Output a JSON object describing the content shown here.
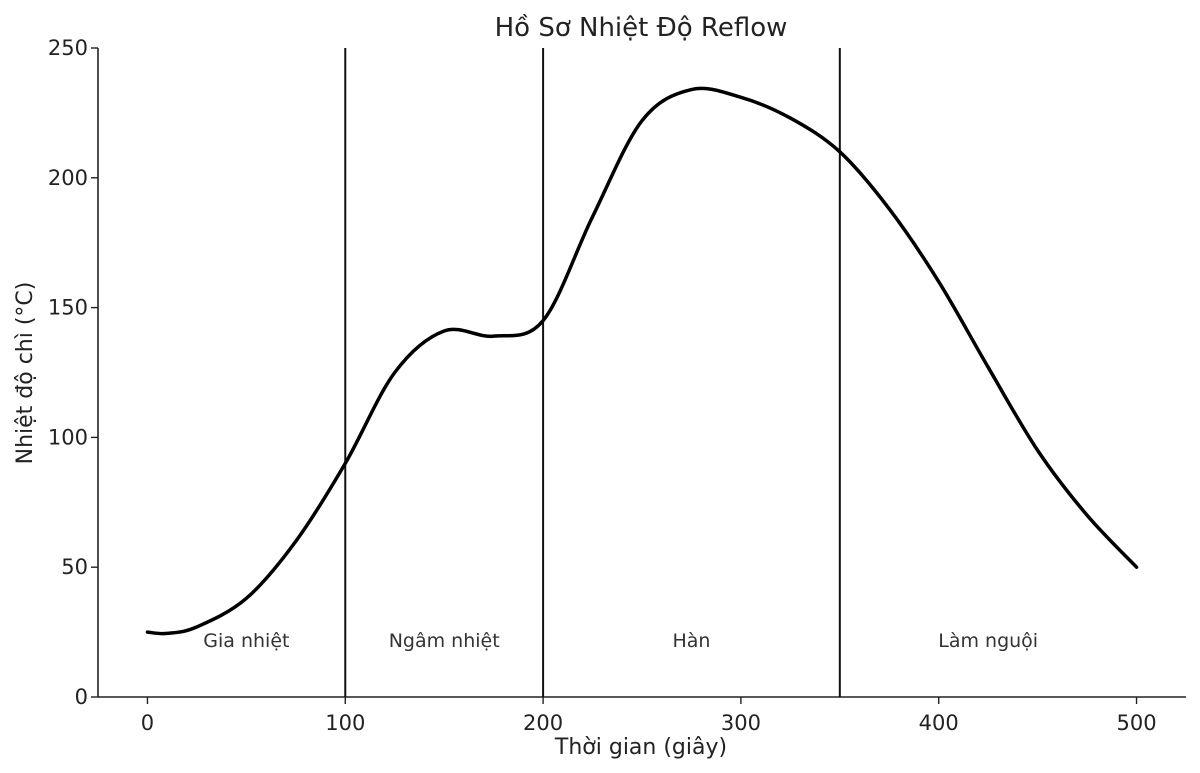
{
  "chart_data": {
    "type": "line",
    "title": "Hồ Sơ Nhiệt Độ Reflow",
    "xlabel": "Thời gian (giây)",
    "ylabel": "Nhiệt độ chì (°C)",
    "xlim": [
      -25,
      525
    ],
    "ylim": [
      0,
      250
    ],
    "xticks": [
      0,
      100,
      200,
      300,
      400,
      500
    ],
    "yticks": [
      0,
      50,
      100,
      150,
      200,
      250
    ],
    "grid": false,
    "series": [
      {
        "x": [
          0,
          10,
          25,
          50,
          75,
          100,
          125,
          150,
          175,
          200,
          225,
          250,
          275,
          300,
          325,
          350,
          375,
          400,
          425,
          450,
          475,
          500
        ],
        "y": [
          25,
          24.5,
          27,
          38,
          60,
          90,
          125,
          141,
          139,
          145,
          185,
          222,
          234,
          231,
          223,
          210,
          188,
          160,
          127,
          95,
          70,
          50
        ]
      }
    ],
    "zone_boundaries": [
      100,
      200,
      350
    ],
    "zones": [
      {
        "label": "Gia nhiệt",
        "x": 50
      },
      {
        "label": "Ngâm nhiệt",
        "x": 150
      },
      {
        "label": "Hàn",
        "x": 275
      },
      {
        "label": "Làm nguội",
        "x": 425
      }
    ],
    "zone_label_y": 22
  }
}
